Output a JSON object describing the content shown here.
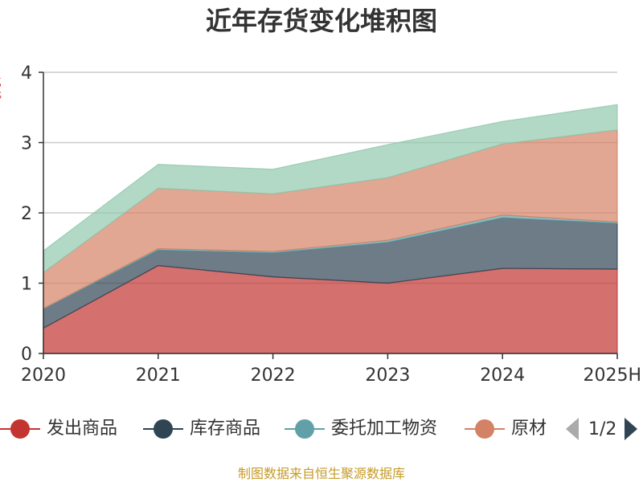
{
  "title": "近年存货变化堆积图",
  "y_axis_label": "亿元",
  "source_note": "制图数据来自恒生聚源数据库",
  "legend": {
    "items": [
      {
        "label": "发出商品",
        "color": "#c23531"
      },
      {
        "label": "库存商品",
        "color": "#2f4554"
      },
      {
        "label": "委托加工物资",
        "color": "#61a0a8"
      },
      {
        "label": "原材",
        "color": "#d48265"
      }
    ],
    "pager_text": "1/2"
  },
  "chart_data": {
    "type": "area",
    "stacked": true,
    "categories": [
      "2020",
      "2021",
      "2022",
      "2023",
      "2024",
      "2025H"
    ],
    "ylim": [
      0,
      4
    ],
    "yticks": [
      "0",
      "1",
      "2",
      "3",
      "4"
    ],
    "grid": true,
    "series": [
      {
        "name": "发出商品",
        "color": "#c23531",
        "values": [
          0.36,
          1.25,
          1.09,
          1.0,
          1.21,
          1.2
        ]
      },
      {
        "name": "库存商品",
        "color": "#2f4554",
        "values": [
          0.27,
          0.22,
          0.34,
          0.58,
          0.72,
          0.65
        ]
      },
      {
        "name": "委托加工物资",
        "color": "#61a0a8",
        "values": [
          0.01,
          0.02,
          0.02,
          0.03,
          0.04,
          0.02
        ]
      },
      {
        "name": "原材料",
        "color": "#d48265",
        "values": [
          0.51,
          0.86,
          0.82,
          0.89,
          1.01,
          1.31
        ]
      },
      {
        "name": "",
        "color": "#91c7ae",
        "values": [
          0.31,
          0.34,
          0.35,
          0.47,
          0.32,
          0.36
        ]
      }
    ]
  }
}
